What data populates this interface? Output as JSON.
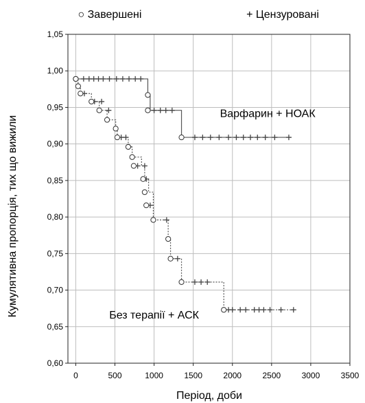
{
  "chart_data": {
    "type": "line",
    "xlabel": "Період, доби",
    "ylabel": "Кумулятивна пропорція, тих що вижили",
    "xlim": [
      -100,
      3500
    ],
    "ylim": [
      0.6,
      1.05
    ],
    "x_ticks": [
      0,
      500,
      1000,
      1500,
      2000,
      2500,
      3000,
      3500
    ],
    "y_ticks": [
      0.6,
      0.65,
      0.7,
      0.75,
      0.8,
      0.85,
      0.9,
      0.95,
      1.0,
      1.05
    ],
    "y_tick_labels": [
      "0,60",
      "0,65",
      "0,70",
      "0,75",
      "0,80",
      "0,85",
      "0,90",
      "0,95",
      "1,00",
      "1,05"
    ],
    "grid": true,
    "legend": {
      "placement": "top",
      "completed": "○ Завершені",
      "censored": "+ Цензуровані"
    },
    "series": [
      {
        "name": "Варфарин + НОАК",
        "line_style": "solid",
        "color": "#555555",
        "step_x": [
          0,
          920,
          950,
          1350,
          2750
        ],
        "step_y": [
          0.989,
          0.967,
          0.946,
          0.909,
          0.909
        ],
        "completed": [
          [
            0,
            0.989
          ],
          [
            920,
            0.967
          ],
          [
            920,
            0.946
          ],
          [
            1350,
            0.909
          ]
        ],
        "censored": [
          [
            100,
            0.989
          ],
          [
            170,
            0.989
          ],
          [
            230,
            0.989
          ],
          [
            290,
            0.989
          ],
          [
            350,
            0.989
          ],
          [
            430,
            0.989
          ],
          [
            520,
            0.989
          ],
          [
            600,
            0.989
          ],
          [
            680,
            0.989
          ],
          [
            760,
            0.989
          ],
          [
            830,
            0.989
          ],
          [
            1000,
            0.946
          ],
          [
            1080,
            0.946
          ],
          [
            1150,
            0.946
          ],
          [
            1230,
            0.946
          ],
          [
            1520,
            0.909
          ],
          [
            1620,
            0.909
          ],
          [
            1720,
            0.909
          ],
          [
            1830,
            0.909
          ],
          [
            1950,
            0.909
          ],
          [
            2050,
            0.909
          ],
          [
            2140,
            0.909
          ],
          [
            2230,
            0.909
          ],
          [
            2320,
            0.909
          ],
          [
            2420,
            0.909
          ],
          [
            2540,
            0.909
          ],
          [
            2720,
            0.909
          ]
        ]
      },
      {
        "name": "Без терапії + АСК",
        "line_style": "dotted",
        "color": "#555555",
        "step_x": [
          0,
          30,
          60,
          200,
          300,
          400,
          510,
          530,
          670,
          720,
          840,
          880,
          930,
          990,
          1180,
          1210,
          1350,
          1890,
          2780
        ],
        "step_y": [
          0.989,
          0.979,
          0.969,
          0.958,
          0.946,
          0.933,
          0.921,
          0.909,
          0.896,
          0.882,
          0.87,
          0.852,
          0.834,
          0.796,
          0.77,
          0.743,
          0.711,
          0.673,
          0.673
        ],
        "completed": [
          [
            0,
            0.989
          ],
          [
            30,
            0.979
          ],
          [
            60,
            0.969
          ],
          [
            200,
            0.958
          ],
          [
            300,
            0.946
          ],
          [
            400,
            0.933
          ],
          [
            510,
            0.921
          ],
          [
            530,
            0.909
          ],
          [
            670,
            0.896
          ],
          [
            720,
            0.882
          ],
          [
            740,
            0.87
          ],
          [
            860,
            0.852
          ],
          [
            880,
            0.834
          ],
          [
            900,
            0.816
          ],
          [
            990,
            0.796
          ],
          [
            1180,
            0.77
          ],
          [
            1210,
            0.743
          ],
          [
            1350,
            0.711
          ],
          [
            1890,
            0.673
          ]
        ],
        "censored": [
          [
            110,
            0.969
          ],
          [
            240,
            0.958
          ],
          [
            330,
            0.958
          ],
          [
            420,
            0.946
          ],
          [
            580,
            0.909
          ],
          [
            640,
            0.909
          ],
          [
            680,
            0.896
          ],
          [
            790,
            0.87
          ],
          [
            880,
            0.87
          ],
          [
            900,
            0.852
          ],
          [
            950,
            0.816
          ],
          [
            1160,
            0.796
          ],
          [
            1300,
            0.743
          ],
          [
            1520,
            0.711
          ],
          [
            1600,
            0.711
          ],
          [
            1680,
            0.711
          ],
          [
            1950,
            0.673
          ],
          [
            2000,
            0.673
          ],
          [
            2100,
            0.673
          ],
          [
            2170,
            0.673
          ],
          [
            2280,
            0.673
          ],
          [
            2340,
            0.673
          ],
          [
            2400,
            0.673
          ],
          [
            2480,
            0.673
          ],
          [
            2620,
            0.673
          ],
          [
            2780,
            0.673
          ]
        ]
      }
    ],
    "annotations": [
      {
        "text": "Варфарин + НОАК",
        "x": 2450,
        "y": 0.937
      },
      {
        "text": "Без терапії + АСК",
        "x": 1000,
        "y": 0.661
      }
    ]
  }
}
